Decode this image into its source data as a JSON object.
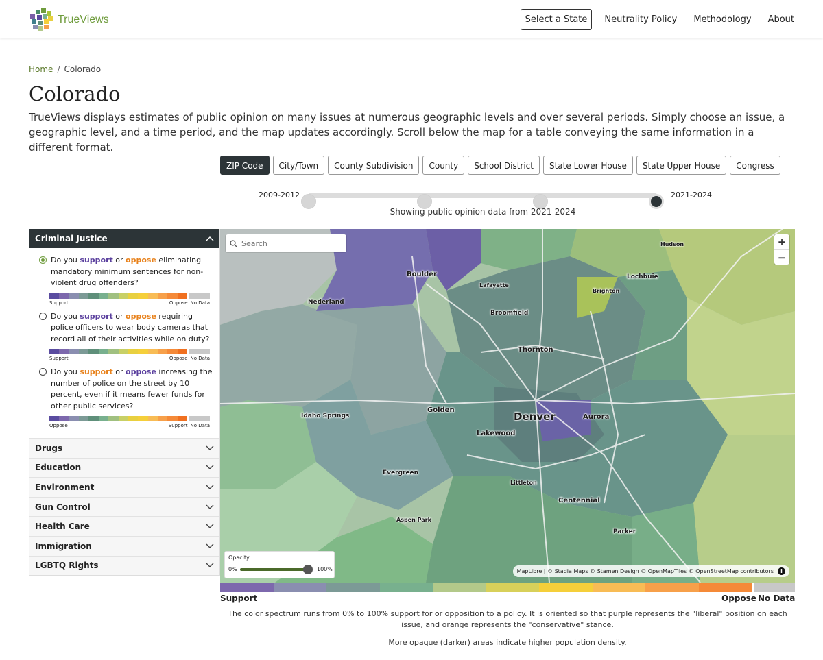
{
  "nav": {
    "brand": "TrueViews",
    "select_state": "Select a State",
    "neutrality": "Neutrality Policy",
    "methodology": "Methodology",
    "about": "About"
  },
  "breadcrumb": {
    "home": "Home",
    "separator": "/",
    "current": "Colorado"
  },
  "title": "Colorado",
  "intro": "TrueViews displays estimates of public opinion on many issues at numerous geographic levels and over several periods. Simply choose an issue, a geographic level, and a time period, and the map updates accordingly. Scroll below the map for a table conveying the same information in a different format.",
  "geo_levels": {
    "selected": "ZIP Code",
    "items": [
      "ZIP Code",
      "City/Town",
      "County Subdivision",
      "County",
      "School District",
      "State Lower House",
      "State Upper House",
      "Congress"
    ]
  },
  "time": {
    "start_label": "2009-2012",
    "end_label": "2021-2024",
    "positions": 4,
    "selected_index": 3,
    "status": "Showing public opinion data from 2021-2024"
  },
  "sidebar": {
    "open_category": "Criminal Justice",
    "questions": [
      {
        "selected": true,
        "lead": "Do you ",
        "a": "support",
        "or": " or ",
        "b": "oppose",
        "rest": " eliminating mandatory minimum sentences for non-violent drug offenders?",
        "legend_left": "Support",
        "legend_right": "Oppose",
        "legend_nodata": "No Data"
      },
      {
        "selected": false,
        "lead": "Do you ",
        "a": "support",
        "or": " or ",
        "b": "oppose",
        "rest": " requiring police officers to wear body cameras that record all of their activities while on duty?",
        "legend_left": "Support",
        "legend_right": "Oppose",
        "legend_nodata": "No Data"
      },
      {
        "selected": false,
        "lead": "Do you ",
        "a": "support",
        "or": " or ",
        "b": "oppose",
        "rest": " increasing the number of police on the street by 10 percent, even if it means fewer funds for other public services?",
        "legend_left": "Oppose",
        "legend_right": "Support",
        "legend_nodata": "No Data"
      }
    ],
    "categories": [
      "Drugs",
      "Education",
      "Environment",
      "Gun Control",
      "Health Care",
      "Immigration",
      "LGBTQ Rights"
    ]
  },
  "map": {
    "search_placeholder": "Search",
    "zoom_in": "+",
    "zoom_out": "−",
    "cities": {
      "denver": "Denver",
      "boulder": "Boulder",
      "lafayette": "Lafayette",
      "nederland": "Nederland",
      "broomfield": "Broomfield",
      "brighton": "Brighton",
      "lochbuie": "Lochbuie",
      "hudson": "Hudson",
      "thornton": "Thornton",
      "golden": "Golden",
      "aurora": "Aurora",
      "idaho_springs": "Idaho Springs",
      "lakewood": "Lakewood",
      "evergreen": "Evergreen",
      "littleton": "Littleton",
      "centennial": "Centennial",
      "aspen_park": "Aspen Park",
      "parker": "Parker"
    },
    "opacity": {
      "title": "Opacity",
      "min": "0%",
      "max": "100%",
      "value": 0.95
    },
    "attribution": "MapLibre | © Stadia Maps © Stamen Design © OpenMapTiles © OpenStreetMap contributors",
    "info": "i"
  },
  "legend": {
    "colors": [
      "#7d68ad",
      "#8a8eb0",
      "#7c9a96",
      "#78b08e",
      "#b3c98a",
      "#d8d05a",
      "#f5cf3a",
      "#f8bc55",
      "#f7a04a",
      "#f58a38"
    ],
    "nodata_color": "#c8c8c8",
    "mini_colors": [
      "#5a4ca0",
      "#7d68ad",
      "#8a8eb0",
      "#7c9a96",
      "#5f8f7a",
      "#78b08e",
      "#a0c080",
      "#c8d066",
      "#e8d040",
      "#f5cf3a",
      "#f8bc55",
      "#f7a04a",
      "#f58a38",
      "#f07020"
    ],
    "support": "Support",
    "oppose": "Oppose",
    "nodata": "No Data",
    "note": "The color spectrum runs from 0% to 100% support for or opposition to a policy. It is oriented so that purple represents the \"liberal\" position on each issue, and orange represents the \"conservative\" stance.",
    "density_note": "More opaque (darker) areas indicate higher population density."
  }
}
